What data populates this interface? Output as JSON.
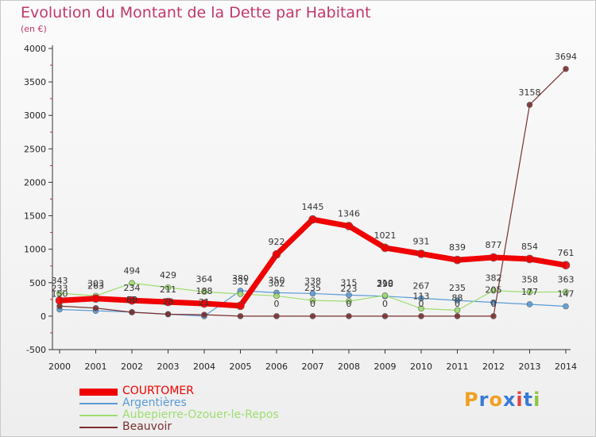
{
  "title": "Evolution du Montant de la Dette par Habitant",
  "subtitle": "(en €)",
  "brand": {
    "letters": [
      "P",
      "r",
      "o",
      "x",
      "i",
      "t",
      "i"
    ],
    "colors": [
      "#f0a020",
      "#3a7bd5",
      "#f0a020",
      "#3a7bd5",
      "#e64040",
      "#3a7bd5",
      "#8cc63f"
    ]
  },
  "chart_data": {
    "type": "line",
    "categories": [
      "2000",
      "2001",
      "2002",
      "2003",
      "2004",
      "2005",
      "2006",
      "2007",
      "2008",
      "2009",
      "2010",
      "2011",
      "2012",
      "2013",
      "2014"
    ],
    "ylim": [
      -500,
      4000
    ],
    "yticks": [
      -500,
      0,
      500,
      1000,
      1500,
      2000,
      2500,
      3000,
      3500,
      4000
    ],
    "grid": false,
    "legend": "bottom",
    "series": [
      {
        "name": "Argentières",
        "color": "#5a9bd5",
        "width": 1.2,
        "marker": 5,
        "values": [
          100,
          80,
          60,
          30,
          0,
          380,
          350,
          338,
          315,
          298,
          267,
          235,
          205,
          177,
          147
        ],
        "labels": [
          null,
          null,
          60,
          null,
          null,
          380,
          350,
          338,
          315,
          298,
          267,
          235,
          205,
          177,
          147
        ]
      },
      {
        "name": "Aubepierre-Ozouer-le-Repos",
        "color": "#9ede6f",
        "width": 1.2,
        "marker": 5,
        "values": [
          343,
          303,
          494,
          429,
          364,
          331,
          302,
          235,
          223,
          310,
          113,
          88,
          382,
          358,
          363
        ],
        "labels": [
          343,
          303,
          494,
          429,
          364,
          331,
          302,
          235,
          223,
          310,
          113,
          88,
          382,
          358,
          363
        ]
      },
      {
        "name": "Beauvoir",
        "color": "#7b2f2f",
        "width": 1.2,
        "marker": 5,
        "values": [
          150,
          120,
          58,
          28,
          21,
          0,
          0,
          0,
          0,
          0,
          0,
          0,
          0,
          3158,
          3694
        ],
        "labels": [
          150,
          null,
          58,
          28,
          21,
          null,
          0,
          0,
          0,
          0,
          0,
          0,
          0,
          3158,
          3694
        ]
      },
      {
        "name": "COURTOMER",
        "color": "#f00000",
        "width": 7,
        "marker": 8,
        "values": [
          233,
          263,
          234,
          211,
          188,
          155,
          922,
          1445,
          1346,
          1021,
          931,
          839,
          877,
          854,
          761
        ],
        "labels": [
          233,
          263,
          234,
          211,
          188,
          null,
          922,
          1445,
          1346,
          1021,
          931,
          839,
          877,
          854,
          761
        ]
      }
    ]
  },
  "legend_order": [
    3,
    0,
    1,
    2
  ]
}
